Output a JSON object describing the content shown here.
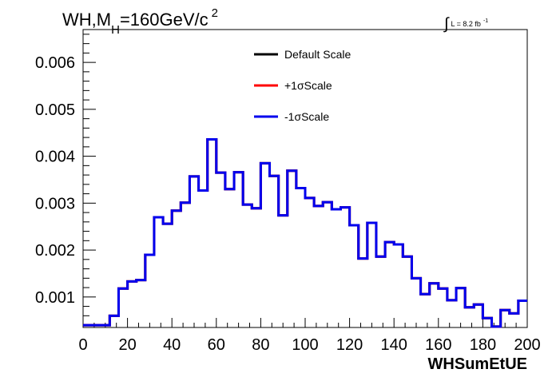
{
  "chart_data": {
    "type": "line",
    "style": "step-histogram",
    "title": {
      "prefix": "WH,M",
      "subscript": "H",
      "suffix": "=160GeV/c",
      "superscript": "2"
    },
    "lumi": {
      "integral": "∫",
      "text": "L = 8.2 fb",
      "superscript": "-1"
    },
    "xlabel": "WHSumEtUE",
    "ylabel": "",
    "xlim": [
      0,
      200
    ],
    "ylim": [
      0.00035,
      0.0067
    ],
    "x_ticks": [
      "0",
      "20",
      "40",
      "60",
      "80",
      "100",
      "120",
      "140",
      "160",
      "180",
      "200"
    ],
    "y_ticks": [
      "0.001",
      "0.002",
      "0.003",
      "0.004",
      "0.005",
      "0.006"
    ],
    "bin_width": 4,
    "bin_edges_start": 0,
    "legend_position": "top-center",
    "series": [
      {
        "name": "Default Scale",
        "color": "#000000",
        "values": [
          0.0004,
          0.0004,
          0.0004,
          0.0006,
          0.00118,
          0.00133,
          0.00136,
          0.0019,
          0.0027,
          0.00256,
          0.00284,
          0.00301,
          0.00357,
          0.00327,
          0.00436,
          0.00365,
          0.0033,
          0.00366,
          0.00297,
          0.00289,
          0.00385,
          0.00358,
          0.00274,
          0.00369,
          0.00332,
          0.00311,
          0.00294,
          0.00302,
          0.00287,
          0.00291,
          0.00253,
          0.00182,
          0.00258,
          0.00186,
          0.00217,
          0.00212,
          0.00186,
          0.0014,
          0.00106,
          0.00129,
          0.00118,
          0.00093,
          0.00119,
          0.00078,
          0.00084,
          0.00055,
          0.00037,
          0.00072,
          0.00065,
          0.00092
        ]
      },
      {
        "name": "+1σScale",
        "color": "#ff0000",
        "values": [
          0.0004,
          0.0004,
          0.0004,
          0.0006,
          0.00118,
          0.00133,
          0.00136,
          0.0019,
          0.0027,
          0.00256,
          0.00284,
          0.00301,
          0.00357,
          0.00327,
          0.00436,
          0.00365,
          0.0033,
          0.00366,
          0.00297,
          0.00289,
          0.00385,
          0.00358,
          0.00274,
          0.00369,
          0.00332,
          0.00311,
          0.00294,
          0.00302,
          0.00287,
          0.00291,
          0.00253,
          0.00182,
          0.00258,
          0.00186,
          0.00217,
          0.00212,
          0.00186,
          0.0014,
          0.00106,
          0.00129,
          0.00118,
          0.00093,
          0.00119,
          0.00078,
          0.00084,
          0.00055,
          0.00037,
          0.00072,
          0.00065,
          0.00092
        ]
      },
      {
        "name": "-1σScale",
        "color": "#0000ee",
        "values": [
          0.0004,
          0.0004,
          0.0004,
          0.0006,
          0.00118,
          0.00133,
          0.00136,
          0.0019,
          0.0027,
          0.00256,
          0.00284,
          0.00301,
          0.00357,
          0.00327,
          0.00436,
          0.00365,
          0.0033,
          0.00366,
          0.00297,
          0.00289,
          0.00385,
          0.00358,
          0.00274,
          0.00369,
          0.00332,
          0.00311,
          0.00294,
          0.00302,
          0.00287,
          0.00291,
          0.00253,
          0.00182,
          0.00258,
          0.00186,
          0.00217,
          0.00212,
          0.00186,
          0.0014,
          0.00106,
          0.00129,
          0.00118,
          0.00093,
          0.00119,
          0.00078,
          0.00084,
          0.00055,
          0.00037,
          0.00072,
          0.00065,
          0.00092
        ]
      }
    ]
  }
}
